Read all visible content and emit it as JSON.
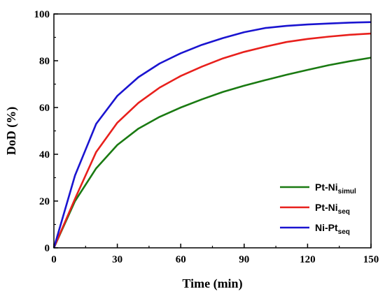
{
  "chart_data": {
    "type": "line",
    "xlabel": "Time (min)",
    "ylabel": "DoD (%)",
    "xlim": [
      0,
      150
    ],
    "ylim": [
      0,
      100
    ],
    "xticks": [
      0,
      30,
      60,
      90,
      120,
      150
    ],
    "yticks": [
      0,
      20,
      40,
      60,
      80,
      100
    ],
    "grid": false,
    "legend_position": "bottom-right",
    "series": [
      {
        "name": "Pt-Ni",
        "subscript": "simul",
        "color": "#1a7a12",
        "x": [
          0,
          10,
          20,
          30,
          40,
          50,
          60,
          70,
          80,
          90,
          100,
          110,
          120,
          130,
          140,
          150
        ],
        "y": [
          0,
          20,
          34,
          44,
          51,
          56,
          60,
          63.5,
          66.7,
          69.3,
          71.7,
          74,
          76.1,
          78.1,
          79.8,
          81.3
        ]
      },
      {
        "name": "Pt-Ni",
        "subscript": "seq",
        "color": "#e8201c",
        "x": [
          0,
          10,
          20,
          30,
          40,
          50,
          60,
          70,
          80,
          90,
          100,
          110,
          120,
          130,
          140,
          150
        ],
        "y": [
          0,
          21,
          41,
          53.5,
          62,
          68.5,
          73.5,
          77.5,
          81,
          83.8,
          86,
          88,
          89.3,
          90.3,
          91.1,
          91.6
        ]
      },
      {
        "name": "Ni-Pt",
        "subscript": "seq",
        "color": "#1a14d0",
        "x": [
          0,
          10,
          20,
          30,
          40,
          50,
          60,
          70,
          80,
          90,
          100,
          110,
          120,
          130,
          140,
          150
        ],
        "y": [
          0,
          31,
          53,
          65,
          73,
          78.8,
          83.2,
          86.8,
          89.7,
          92.2,
          94,
          94.9,
          95.5,
          95.9,
          96.3,
          96.5
        ]
      }
    ]
  }
}
